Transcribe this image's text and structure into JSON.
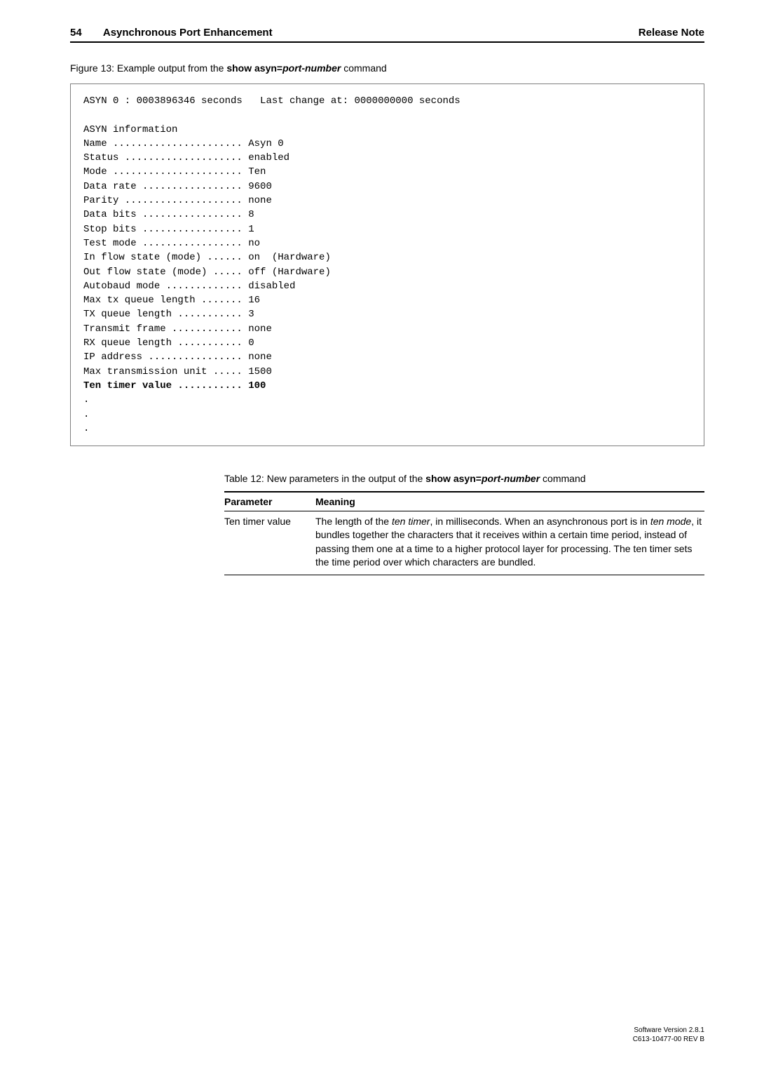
{
  "header": {
    "page_number": "54",
    "section_title": "Asynchronous Port Enhancement",
    "doc_label": "Release Note"
  },
  "figure": {
    "caption_prefix": "Figure 13: Example output from the ",
    "caption_bold": "show asyn=",
    "caption_bold_italic": "port-number",
    "caption_suffix": " command",
    "lines": {
      "l0": "ASYN 0 : 0003896346 seconds   Last change at: 0000000000 seconds",
      "l1": "",
      "l2": "ASYN information",
      "l3": "Name ...................... Asyn 0",
      "l4": "Status .................... enabled",
      "l5": "Mode ...................... Ten",
      "l6": "Data rate ................. 9600",
      "l7": "Parity .................... none",
      "l8": "Data bits ................. 8",
      "l9": "Stop bits ................. 1",
      "l10": "Test mode ................. no",
      "l11": "In flow state (mode) ...... on  (Hardware)",
      "l12": "Out flow state (mode) ..... off (Hardware)",
      "l13": "Autobaud mode ............. disabled",
      "l14": "Max tx queue length ....... 16",
      "l15": "TX queue length ........... 3",
      "l16": "Transmit frame ............ none",
      "l17": "RX queue length ........... 0",
      "l18": "IP address ................ none",
      "l19": "Max transmission unit ..... 1500",
      "l20": "Ten timer value ........... 100",
      "l21": ".",
      "l22": ".",
      "l23": "."
    }
  },
  "table": {
    "caption_prefix": "Table 12: New parameters in the output of the ",
    "caption_bold": "show asyn=",
    "caption_bold_italic": "port-number",
    "caption_suffix": " command",
    "columns": {
      "param": "Parameter",
      "meaning": "Meaning"
    },
    "rows": {
      "r0": {
        "param": "Ten timer value",
        "meaning_parts": {
          "p0": "The length of the ",
          "p1_italic": "ten timer",
          "p2": ", in milliseconds. When an asynchronous port is in ",
          "p3_italic": "ten mode",
          "p4": ", it bundles together the characters that it receives within a certain time period, instead of passing them one at a time to a higher protocol layer for processing. The ten timer sets the time period over which characters are bundled."
        }
      }
    }
  },
  "footer": {
    "line1": "Software Version 2.8.1",
    "line2": "C613-10477-00 REV B"
  }
}
